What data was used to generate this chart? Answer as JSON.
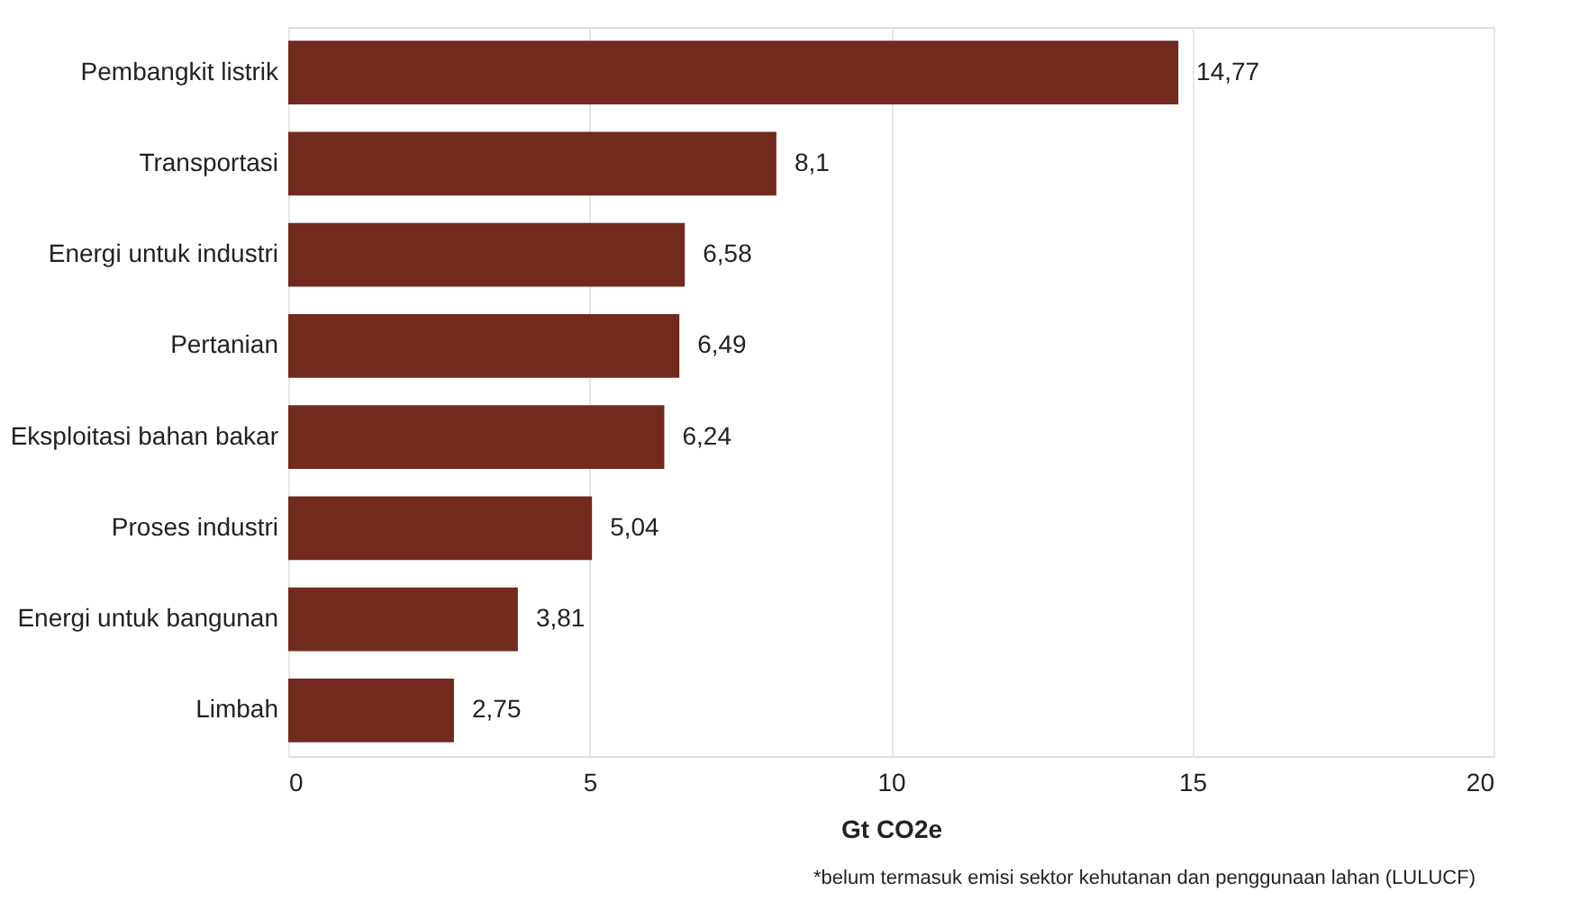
{
  "chart_data": {
    "type": "bar",
    "orientation": "horizontal",
    "xlabel": "Gt CO2e",
    "categories": [
      "Pembangkit listrik",
      "Transportasi",
      "Energi untuk industri",
      "Pertanian",
      "Eksploitasi bahan bakar",
      "Proses industri",
      "Energi untuk bangunan",
      "Limbah"
    ],
    "values": [
      14.77,
      8.1,
      6.58,
      6.49,
      6.24,
      5.04,
      3.81,
      2.75
    ],
    "value_labels": [
      "14,77",
      "8,1",
      "6,58",
      "6,49",
      "6,24",
      "5,04",
      "3,81",
      "2,75"
    ],
    "color": "#722a1c",
    "xlim": [
      0,
      20
    ],
    "xticks": [
      0,
      5,
      10,
      15,
      20
    ],
    "grid": "x",
    "annotations": [
      "*belum termasuk emisi sektor kehutanan dan penggunaan lahan (LULUCF)"
    ]
  }
}
